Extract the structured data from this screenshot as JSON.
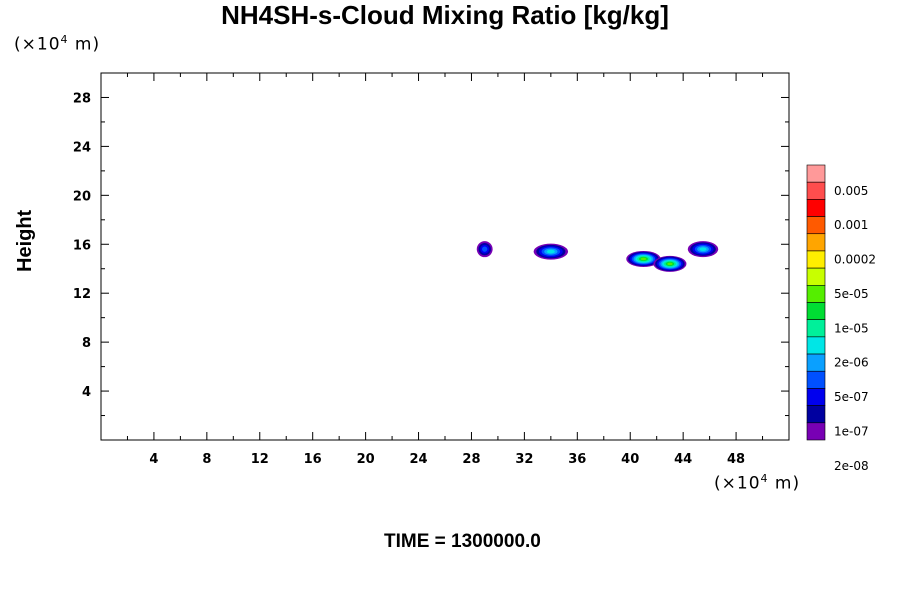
{
  "chart_data": {
    "type": "heatmap",
    "title": "NH4SH-s-Cloud Mixing Ratio [kg/kg]",
    "ylabel": "Height",
    "xlabel": "",
    "x_unit": {
      "prefix": "(×10",
      "exp": "4",
      "suffix": " m)"
    },
    "y_unit": {
      "prefix": "(×10",
      "exp": "4",
      "suffix": " m)"
    },
    "xlim": [
      0,
      52
    ],
    "ylim": [
      0,
      30
    ],
    "x_ticks": [
      4,
      8,
      12,
      16,
      20,
      24,
      28,
      32,
      36,
      40,
      44,
      48
    ],
    "y_ticks": [
      4,
      8,
      12,
      16,
      20,
      24,
      28
    ],
    "colorbar": {
      "labels": [
        "0.005",
        "0.001",
        "0.0002",
        "5e-05",
        "1e-05",
        "2e-06",
        "5e-07",
        "1e-07",
        "2e-08"
      ],
      "colors": [
        "#ff9999",
        "#ff4d4d",
        "#ff0000",
        "#ff5a00",
        "#ffa500",
        "#ffee00",
        "#c8ff00",
        "#55ee00",
        "#00dd33",
        "#00f09a",
        "#00e6e6",
        "#0aa0ff",
        "#0050ff",
        "#0000ee",
        "#0000a0",
        "#7800b4"
      ]
    },
    "cloud_features": [
      {
        "x_center": 29.0,
        "x_extent": [
          28.6,
          29.8
        ],
        "z_center": 15.6,
        "max_level": "1e-07"
      },
      {
        "x_center": 34.0,
        "x_extent": [
          32.9,
          35.5
        ],
        "z_center": 15.4,
        "max_level": "5e-07"
      },
      {
        "x_center": 41.0,
        "x_extent": [
          39.9,
          42.5
        ],
        "z_center": 14.8,
        "max_level": "1e-05"
      },
      {
        "x_center": 43.0,
        "x_extent": [
          42.0,
          44.5
        ],
        "z_center": 14.4,
        "max_level": "1e-05"
      },
      {
        "x_center": 45.5,
        "x_extent": [
          44.4,
          46.7
        ],
        "z_center": 15.6,
        "max_level": "5e-07"
      }
    ]
  },
  "footer": {
    "time": "TIME = 1300000.0"
  }
}
